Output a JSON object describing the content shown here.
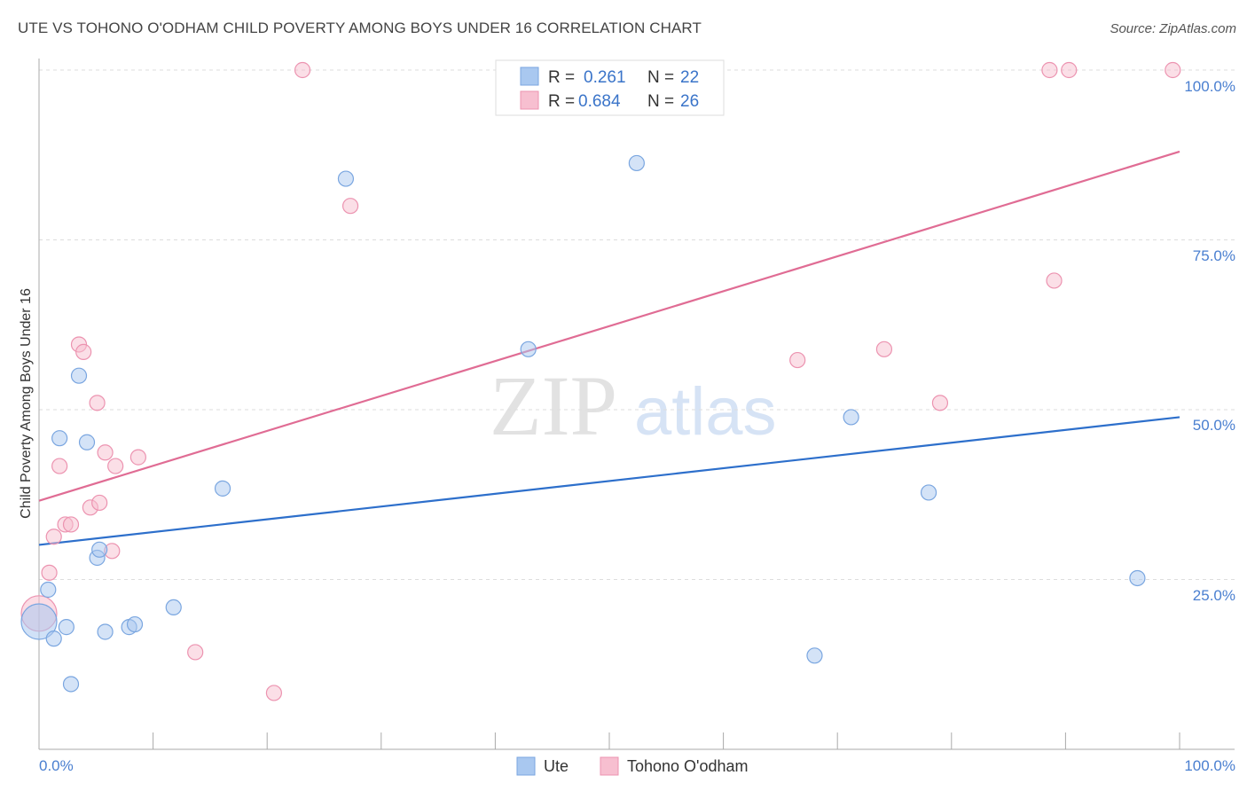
{
  "header": {
    "title": "UTE VS TOHONO O'ODHAM CHILD POVERTY AMONG BOYS UNDER 16 CORRELATION CHART",
    "source": "Source: ZipAtlas.com"
  },
  "watermark": {
    "zip": "ZIP",
    "atlas": "atlas"
  },
  "legend_top": {
    "rows": [
      {
        "r_label": "R =",
        "r_value": "0.261",
        "n_label": "N =",
        "n_value": "22"
      },
      {
        "r_label": "R =",
        "r_value": "0.684",
        "n_label": "N =",
        "n_value": "26"
      }
    ]
  },
  "legend_bottom": {
    "items": [
      "Ute",
      "Tohono O'odham"
    ]
  },
  "chart_data": {
    "type": "scatter",
    "title": "UTE VS TOHONO O'ODHAM CHILD POVERTY AMONG BOYS UNDER 16 CORRELATION CHART",
    "xlabel": "",
    "ylabel": "Child Poverty Among Boys Under 16",
    "xlim": [
      0,
      100
    ],
    "ylim": [
      0,
      100
    ],
    "x_tick_labels": [
      "0.0%",
      "100.0%"
    ],
    "y_tick_labels": [
      "25.0%",
      "50.0%",
      "75.0%",
      "100.0%"
    ],
    "y_ticks": [
      25,
      50,
      75,
      100
    ],
    "grid": true,
    "legend_placement": "top-center and bottom",
    "colors": {
      "Ute": "#a9c8f0",
      "Ute_edge": "#7aa6e0",
      "Ute_line": "#2d6fcb",
      "Tohono O'odham": "#f7bfd0",
      "Tohono_edge": "#ec93b0",
      "Tohono_line": "#e06c94",
      "grid": "#dddddd",
      "axis": "#aaaaaa"
    },
    "series": [
      {
        "name": "Ute",
        "r": 0.261,
        "n": 22,
        "trend": {
          "x": [
            0,
            100
          ],
          "y": [
            30.1,
            48.9
          ]
        },
        "points": [
          {
            "x": 0.0,
            "y": 18.8,
            "big": true
          },
          {
            "x": 0.8,
            "y": 23.5
          },
          {
            "x": 1.3,
            "y": 16.3
          },
          {
            "x": 1.8,
            "y": 45.8
          },
          {
            "x": 2.4,
            "y": 18.0
          },
          {
            "x": 2.8,
            "y": 9.6
          },
          {
            "x": 3.5,
            "y": 55.0
          },
          {
            "x": 4.2,
            "y": 45.2
          },
          {
            "x": 5.1,
            "y": 28.2
          },
          {
            "x": 5.3,
            "y": 29.4
          },
          {
            "x": 5.8,
            "y": 17.3
          },
          {
            "x": 7.9,
            "y": 18.0
          },
          {
            "x": 8.4,
            "y": 18.4
          },
          {
            "x": 11.8,
            "y": 20.9
          },
          {
            "x": 16.1,
            "y": 38.4
          },
          {
            "x": 26.9,
            "y": 84.0
          },
          {
            "x": 42.9,
            "y": 58.9
          },
          {
            "x": 52.4,
            "y": 86.3
          },
          {
            "x": 68.0,
            "y": 13.8
          },
          {
            "x": 71.2,
            "y": 48.9
          },
          {
            "x": 78.0,
            "y": 37.8
          },
          {
            "x": 96.3,
            "y": 25.2
          }
        ]
      },
      {
        "name": "Tohono O'odham",
        "r": 0.684,
        "n": 26,
        "trend": {
          "x": [
            0,
            100
          ],
          "y": [
            36.6,
            88.0
          ]
        },
        "points": [
          {
            "x": 0.0,
            "y": 20.0,
            "big": true
          },
          {
            "x": 0.9,
            "y": 26.0
          },
          {
            "x": 1.3,
            "y": 31.3
          },
          {
            "x": 1.8,
            "y": 41.7
          },
          {
            "x": 2.3,
            "y": 33.1
          },
          {
            "x": 2.8,
            "y": 33.1
          },
          {
            "x": 3.5,
            "y": 59.6
          },
          {
            "x": 3.9,
            "y": 58.5
          },
          {
            "x": 4.5,
            "y": 35.6
          },
          {
            "x": 5.1,
            "y": 51.0
          },
          {
            "x": 5.3,
            "y": 36.3
          },
          {
            "x": 5.8,
            "y": 43.7
          },
          {
            "x": 6.4,
            "y": 29.2
          },
          {
            "x": 6.7,
            "y": 41.7
          },
          {
            "x": 8.7,
            "y": 43.0
          },
          {
            "x": 13.7,
            "y": 14.3
          },
          {
            "x": 20.6,
            "y": 8.3
          },
          {
            "x": 23.1,
            "y": 100.0
          },
          {
            "x": 27.3,
            "y": 80.0
          },
          {
            "x": 66.5,
            "y": 57.3
          },
          {
            "x": 74.1,
            "y": 58.9
          },
          {
            "x": 79.0,
            "y": 51.0
          },
          {
            "x": 88.6,
            "y": 100.0
          },
          {
            "x": 89.0,
            "y": 69.0
          },
          {
            "x": 90.3,
            "y": 100.0
          },
          {
            "x": 99.4,
            "y": 100.0
          }
        ]
      }
    ]
  }
}
